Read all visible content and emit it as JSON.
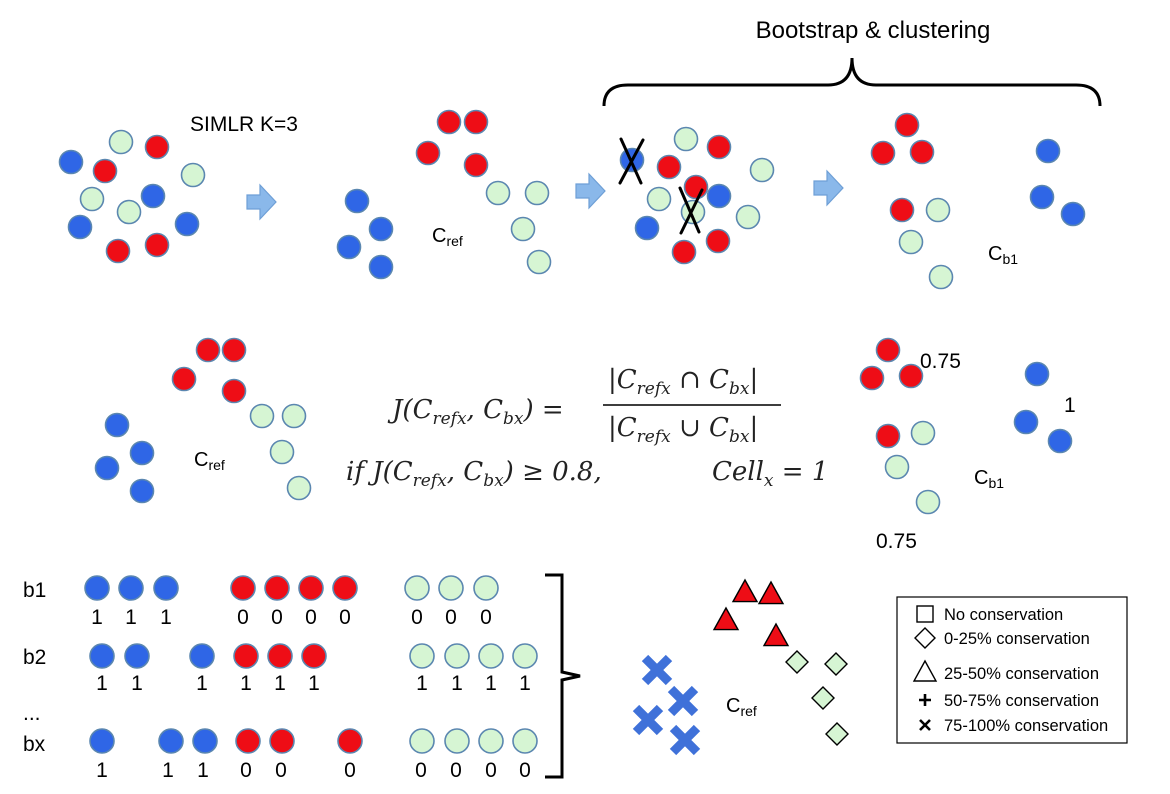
{
  "colors": {
    "blue": "#2f66e6",
    "red": "#ee0d16",
    "green": "#d6f5d3",
    "outline": "#5b87b0",
    "arrow_fill": "#8ab8ea",
    "arrow_stroke": "#6e9fd6",
    "cross_blue": "#3f71d9"
  },
  "top": {
    "bracket_label": "Bootstrap & clustering",
    "simlr_label": "SIMLR K=3",
    "cref_main": "C",
    "cref_sub": "ref",
    "cb1_main": "C",
    "cb1_sub": "b1"
  },
  "middle": {
    "cref_main": "C",
    "cref_sub": "ref",
    "cb1_main": "C",
    "cb1_sub": "b1",
    "formula_line1_left": "J(C",
    "formula_line1_sub1": "refx",
    "formula_line1_mid": ", C",
    "formula_line1_sub2": "bx",
    "formula_line1_end": ") =",
    "numerator_pre": "|C",
    "numerator_sub1": "refx",
    "numerator_op": " ∩ C",
    "numerator_sub2": "bx",
    "numerator_post": "|",
    "denominator_pre": "|C",
    "denominator_sub1": "refx",
    "denominator_op": " ∪ C",
    "denominator_sub2": "bx",
    "denominator_post": "|",
    "line2_if": "if J(C",
    "line2_sub1": "refx",
    "line2_mid": ", C",
    "line2_sub2": "bx",
    "line2_end": ")  ≥ 0.8,",
    "line2_cell": "Cell",
    "line2_cell_sub": "x",
    "line2_cell_end": " = 1",
    "score_red_top": "0.75",
    "score_blue": "1",
    "score_green": "0.75"
  },
  "bottom": {
    "row_labels": [
      "b1",
      "b2",
      "...",
      "bx"
    ],
    "row_b1_values": [
      "1",
      "1",
      "1",
      "0",
      "0",
      "0",
      "0",
      "0",
      "0",
      "0"
    ],
    "row_b2_values": [
      "1",
      "1",
      "1",
      "1",
      "1",
      "1",
      "1",
      "1",
      "1",
      "1"
    ],
    "row_bx_values": [
      "1",
      "1",
      "1",
      "0",
      "0",
      "0",
      "0",
      "0",
      "0",
      "0"
    ],
    "cref_main": "C",
    "cref_sub": "ref"
  },
  "legend": {
    "items": [
      {
        "icon": "square-icon",
        "label": "No conservation"
      },
      {
        "icon": "diamond-icon",
        "label": "0-25% conservation"
      },
      {
        "icon": "triangle-icon",
        "label": "25-50% conservation"
      },
      {
        "icon": "plus-icon",
        "label": "50-75% conservation"
      },
      {
        "icon": "x-icon",
        "label": "75-100% conservation"
      }
    ]
  }
}
